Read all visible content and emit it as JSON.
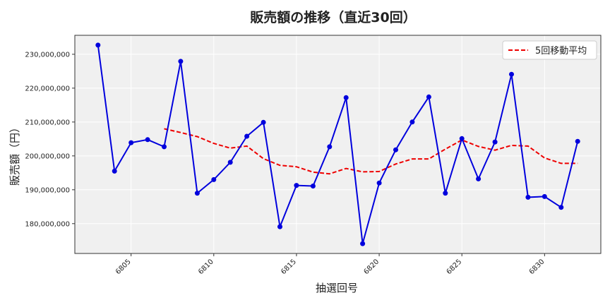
{
  "chart_data": {
    "type": "line",
    "title": "販売額の推移（直近30回）",
    "xlabel": "抽選回号",
    "ylabel": "販売額（円）",
    "x": [
      6803,
      6804,
      6805,
      6806,
      6807,
      6808,
      6809,
      6810,
      6811,
      6812,
      6813,
      6814,
      6815,
      6816,
      6817,
      6818,
      6819,
      6820,
      6821,
      6822,
      6823,
      6824,
      6825,
      6826,
      6827,
      6828,
      6829,
      6830,
      6831,
      6832
    ],
    "series": [
      {
        "name": "",
        "color": "#0000dd",
        "style": "solid-marker",
        "values": [
          232700000,
          195500000,
          203900000,
          204800000,
          202700000,
          227900000,
          189000000,
          193000000,
          198100000,
          205800000,
          209900000,
          179100000,
          191300000,
          191100000,
          202700000,
          217200000,
          174100000,
          192000000,
          201800000,
          210000000,
          217400000,
          189000000,
          205100000,
          193200000,
          204100000,
          224100000,
          187800000,
          188000000,
          184800000,
          204300000
        ]
      },
      {
        "name": "5回移動平均",
        "color": "#ee0000",
        "style": "dashed",
        "values": [
          null,
          null,
          null,
          null,
          208000000,
          206900000,
          205700000,
          203700000,
          202300000,
          202900000,
          199200000,
          197200000,
          196800000,
          195200000,
          194700000,
          196300000,
          195300000,
          195400000,
          197600000,
          199100000,
          199100000,
          202000000,
          204700000,
          202800000,
          201700000,
          203100000,
          202900000,
          199400000,
          197800000,
          197800000
        ]
      }
    ],
    "xticks": [
      6805,
      6810,
      6815,
      6820,
      6825,
      6830
    ],
    "yticks": [
      180000000,
      190000000,
      200000000,
      210000000,
      220000000,
      230000000
    ],
    "ytick_labels": [
      "180,000,000",
      "190,000,000",
      "200,000,000",
      "210,000,000",
      "220,000,000",
      "230,000,000"
    ],
    "xlim": [
      6801.6,
      6833.4
    ],
    "ylim": [
      171200000,
      235600000
    ],
    "grid": true,
    "legend": "top-right",
    "background": "#f0f0f0"
  }
}
